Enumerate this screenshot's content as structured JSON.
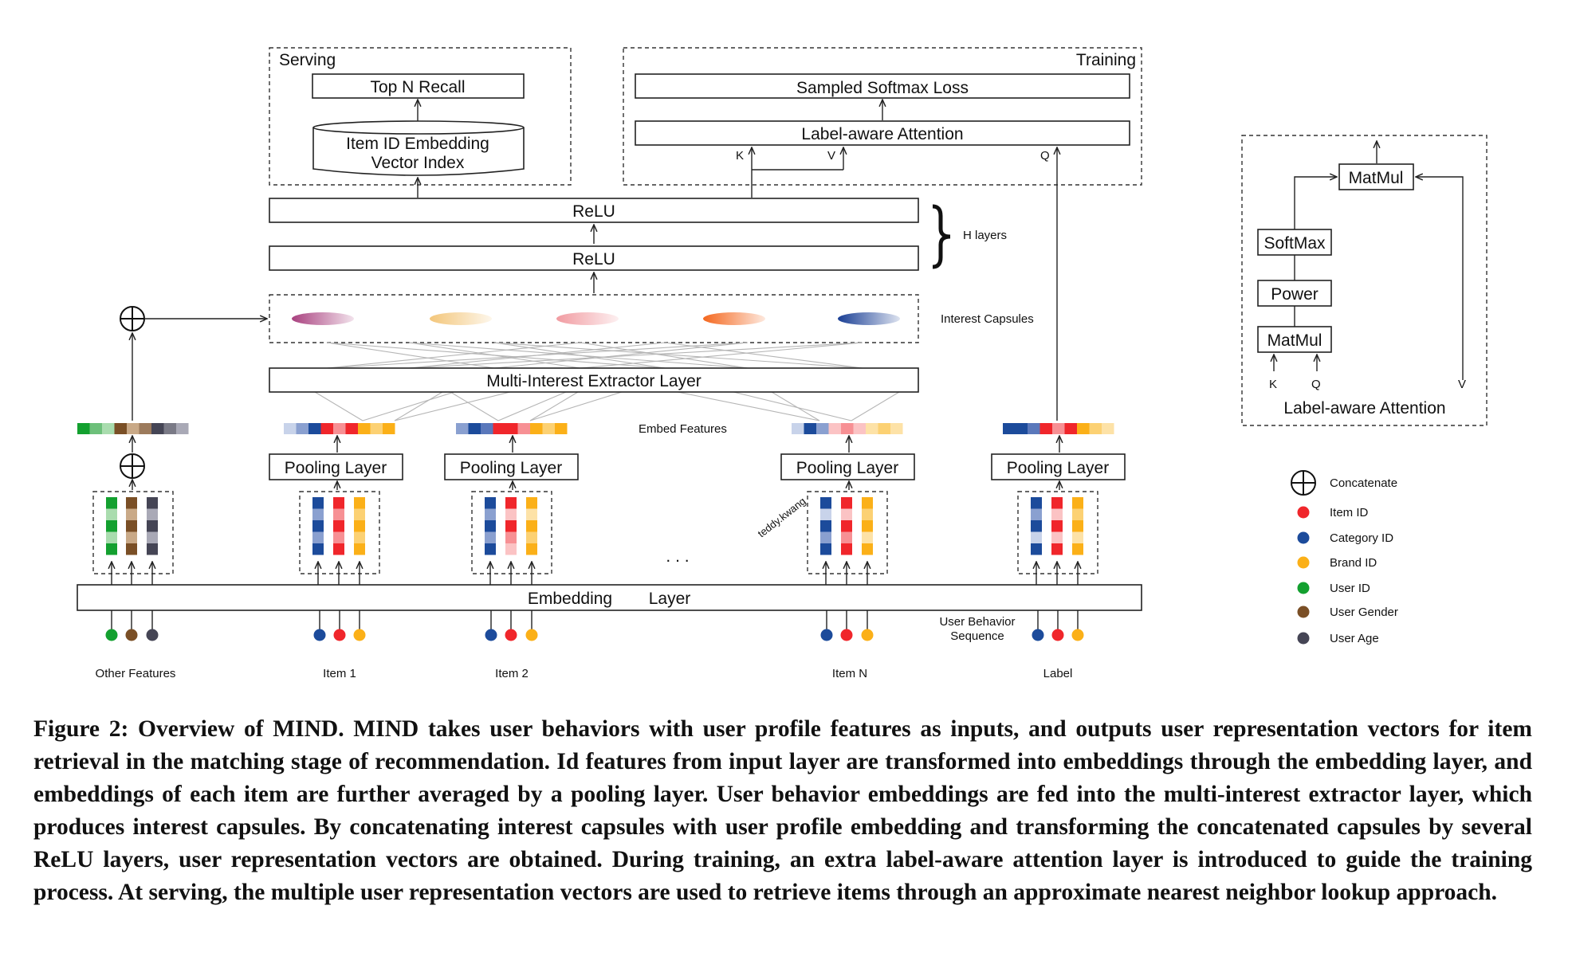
{
  "serving": {
    "title": "Serving",
    "top_n_recall": "Top N Recall",
    "index_line1": "Item ID Embedding",
    "index_line2": "Vector Index"
  },
  "training": {
    "title": "Training",
    "loss": "Sampled Softmax Loss",
    "label_aware": "Label-aware Attention",
    "k": "K",
    "v": "V",
    "q": "Q"
  },
  "relu_top": "ReLU",
  "relu_bottom": "ReLU",
  "h_layers": "H layers",
  "interest_capsules": "Interest Capsules",
  "multi_interest": "Multi-Interest Extractor Layer",
  "embed_features": "Embed Features",
  "pooling_label": "Pooling Layer",
  "embedding_layer": [
    "Embedding",
    "Layer"
  ],
  "user_behavior_sequence": [
    "User Behavior",
    "Sequence"
  ],
  "ellipsis": ". . .",
  "groups": [
    "Other Features",
    "Item 1",
    "Item 2",
    "Item N",
    "Label"
  ],
  "watermark": "teddy.kwang",
  "attention_detail": {
    "title": "Label-aware Attention",
    "matmul_top": "MatMul",
    "softmax": "SoftMax",
    "power": "Power",
    "matmul_bottom": "MatMul",
    "k": "K",
    "q": "Q",
    "v": "V"
  },
  "legend": [
    {
      "label": "Concatenate",
      "icon": "concat-icon"
    },
    {
      "label": "Item ID",
      "color": "#f0262b"
    },
    {
      "label": "Category ID",
      "color": "#1c4b9b"
    },
    {
      "label": "Brand ID",
      "color": "#fbb018"
    },
    {
      "label": "User ID",
      "color": "#13a02f"
    },
    {
      "label": "User Gender",
      "color": "#7a4f26"
    },
    {
      "label": "User Age",
      "color": "#454555"
    }
  ],
  "capsule_colors": [
    "#a9417f",
    "#f3c67a",
    "#f19ba1",
    "#f4671e",
    "#1a3f95"
  ],
  "caption": "Figure 2: Overview of MIND. MIND takes user behaviors with user profile features as inputs, and outputs user representation vectors for item retrieval in the matching stage of recommendation. Id features from input layer are transformed into embeddings through the embedding layer, and embeddings of each item are further averaged by a pooling layer. User behavior embeddings are fed into the multi-interest extractor layer, which produces interest capsules. By concatenating interest capsules with user profile embedding and transforming the concatenated capsules by several ReLU layers, user representation vectors are obtained. During training, an extra label-aware attention layer is introduced to guide the training process. At serving, the multiple user representation vectors are used to retrieve items through an approximate nearest neighbor lookup approach."
}
